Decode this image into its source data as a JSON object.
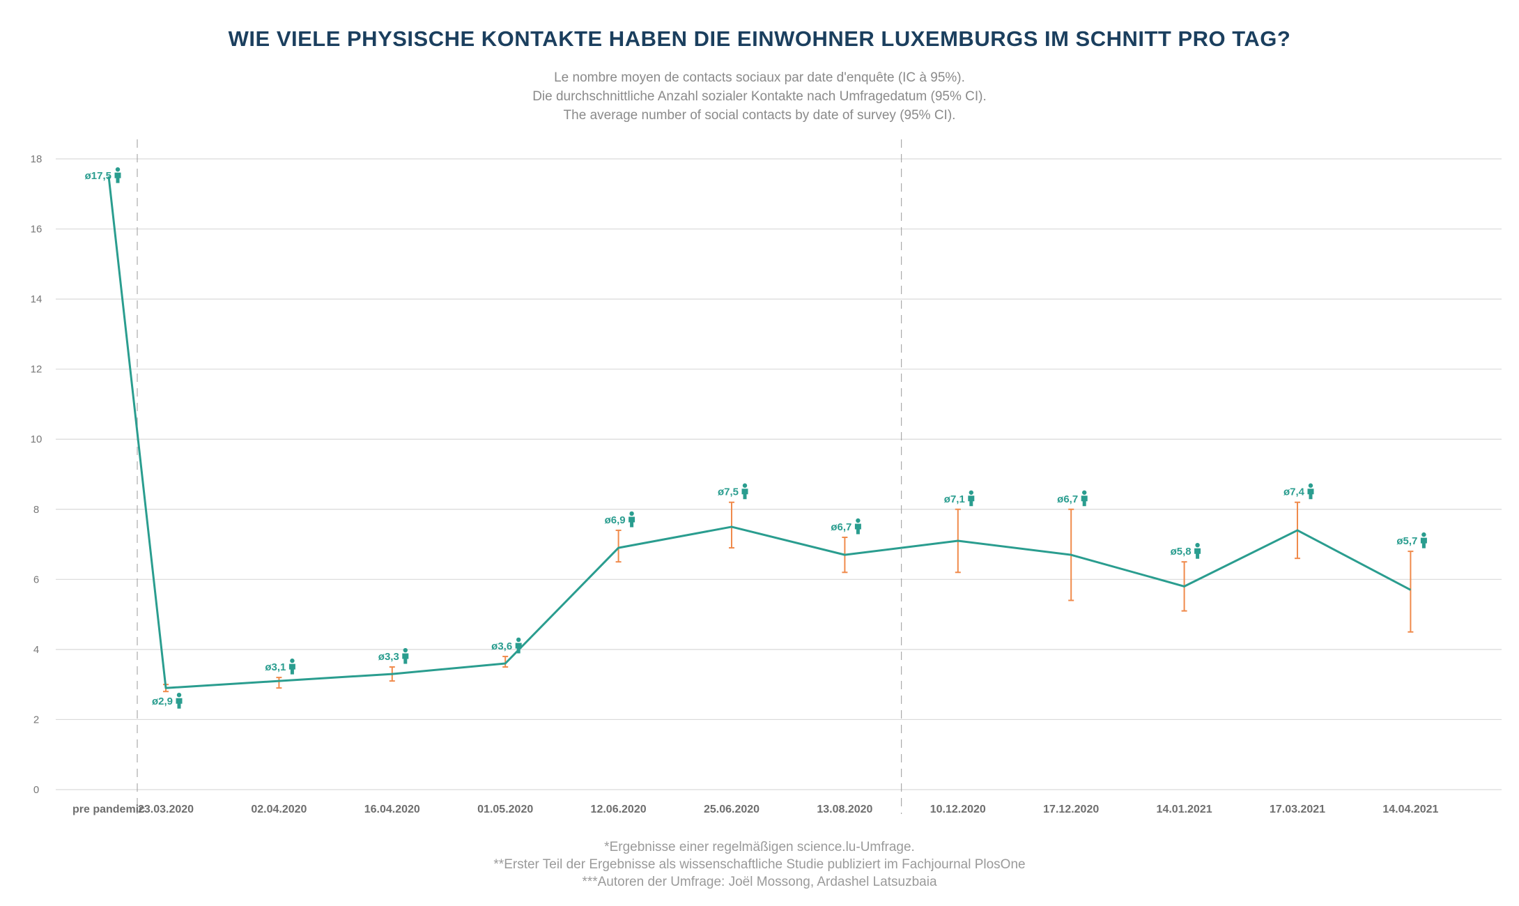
{
  "title": "WIE VIELE PHYSISCHE KONTAKTE HABEN DIE EINWOHNER LUXEMBURGS IM SCHNITT PRO TAG?",
  "subtitle": [
    "Le nombre moyen de contacts sociaux par date d'enquête (IC à 95%).",
    "Die durchschnittliche Anzahl sozialer Kontakte nach Umfragedatum (95% CI).",
    "The average number of social contacts by date of survey (95% CI)."
  ],
  "footer": [
    "*Ergebnisse einer regelmäßigen science.lu-Umfrage.",
    "**Erster Teil der Ergebnisse als wissenschaftliche Studie publiziert im Fachjournal PlosOne",
    "***Autoren der Umfrage: Joël Mossong, Ardashel Latsuzbaia"
  ],
  "colors": {
    "line": "#2a9d8f",
    "error_bar": "#f08a4b",
    "title": "#1b3f5e",
    "grid": "#d9d9d9",
    "divider": "#aaaaaa"
  },
  "icons": {
    "value_marker": "person-icon"
  },
  "chart_data": {
    "type": "line",
    "title": "WIE VIELE PHYSISCHE KONTAKTE HABEN DIE EINWOHNER LUXEMBURGS IM SCHNITT PRO TAG?",
    "xlabel": "",
    "ylabel": "",
    "ylim": [
      0,
      18
    ],
    "yticks": [
      0,
      2,
      4,
      6,
      8,
      10,
      12,
      14,
      16,
      18
    ],
    "grid": true,
    "categories": [
      "pre pandemic",
      "23.03.2020",
      "02.04.2020",
      "16.04.2020",
      "01.05.2020",
      "12.06.2020",
      "25.06.2020",
      "13.08.2020",
      "10.12.2020",
      "17.12.2020",
      "14.01.2021",
      "17.03.2021",
      "14.04.2021"
    ],
    "values": [
      17.5,
      2.9,
      3.1,
      3.3,
      3.6,
      6.9,
      7.5,
      6.7,
      7.1,
      6.7,
      5.8,
      7.4,
      5.7
    ],
    "labels": [
      "ø17,5",
      "ø2,9",
      "ø3,1",
      "ø3,3",
      "ø3,6",
      "ø6,9",
      "ø7,5",
      "ø6,7",
      "ø7,1",
      "ø6,7",
      "ø5,8",
      "ø7,4",
      "ø5,7"
    ],
    "ci_low": [
      null,
      2.8,
      2.9,
      3.1,
      3.5,
      6.5,
      6.9,
      6.2,
      6.2,
      5.4,
      5.1,
      6.6,
      4.5
    ],
    "ci_high": [
      null,
      3.0,
      3.2,
      3.5,
      3.8,
      7.4,
      8.2,
      7.2,
      8.0,
      8.0,
      6.5,
      8.2,
      6.8
    ],
    "period_dividers_after": [
      0,
      7
    ]
  }
}
